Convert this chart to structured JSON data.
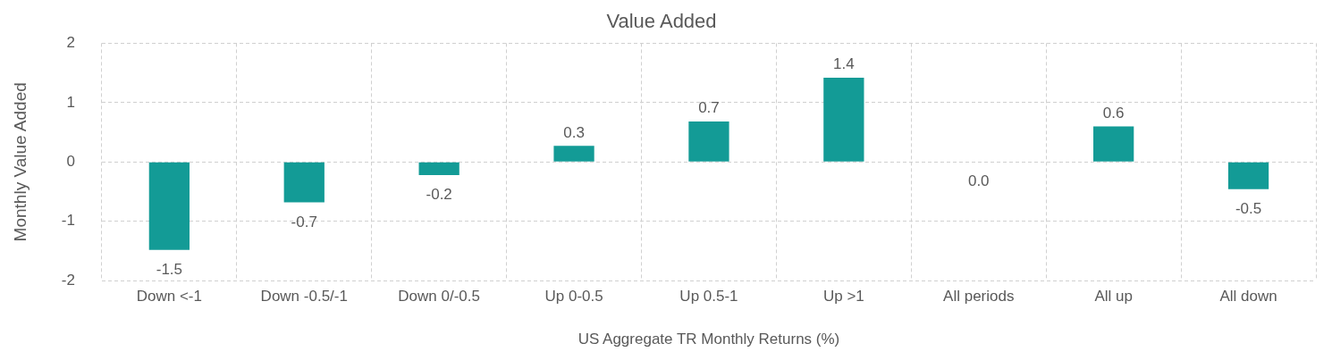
{
  "chart_data": {
    "type": "bar",
    "title": "Value Added",
    "xlabel": "US Aggregate TR Monthly Returns (%)",
    "ylabel": "Monthly Value Added",
    "categories": [
      "Down <-1",
      "Down -0.5/-1",
      "Down 0/-0.5",
      "Up 0-0.5",
      "Up 0.5-1",
      "Up >1",
      "All periods",
      "All up",
      "All down"
    ],
    "values": [
      -1.48,
      -0.68,
      -0.22,
      0.27,
      0.68,
      1.42,
      0.0,
      0.6,
      -0.46
    ],
    "value_labels": [
      "-1.5",
      "-0.7",
      "-0.2",
      "0.3",
      "0.7",
      "1.4",
      "0.0",
      "0.6",
      "-0.5"
    ],
    "color": "#139b96",
    "ylim": [
      -2,
      2
    ],
    "yticks": [
      -2,
      -1,
      0,
      1,
      2
    ],
    "grid": true,
    "legend": false
  }
}
